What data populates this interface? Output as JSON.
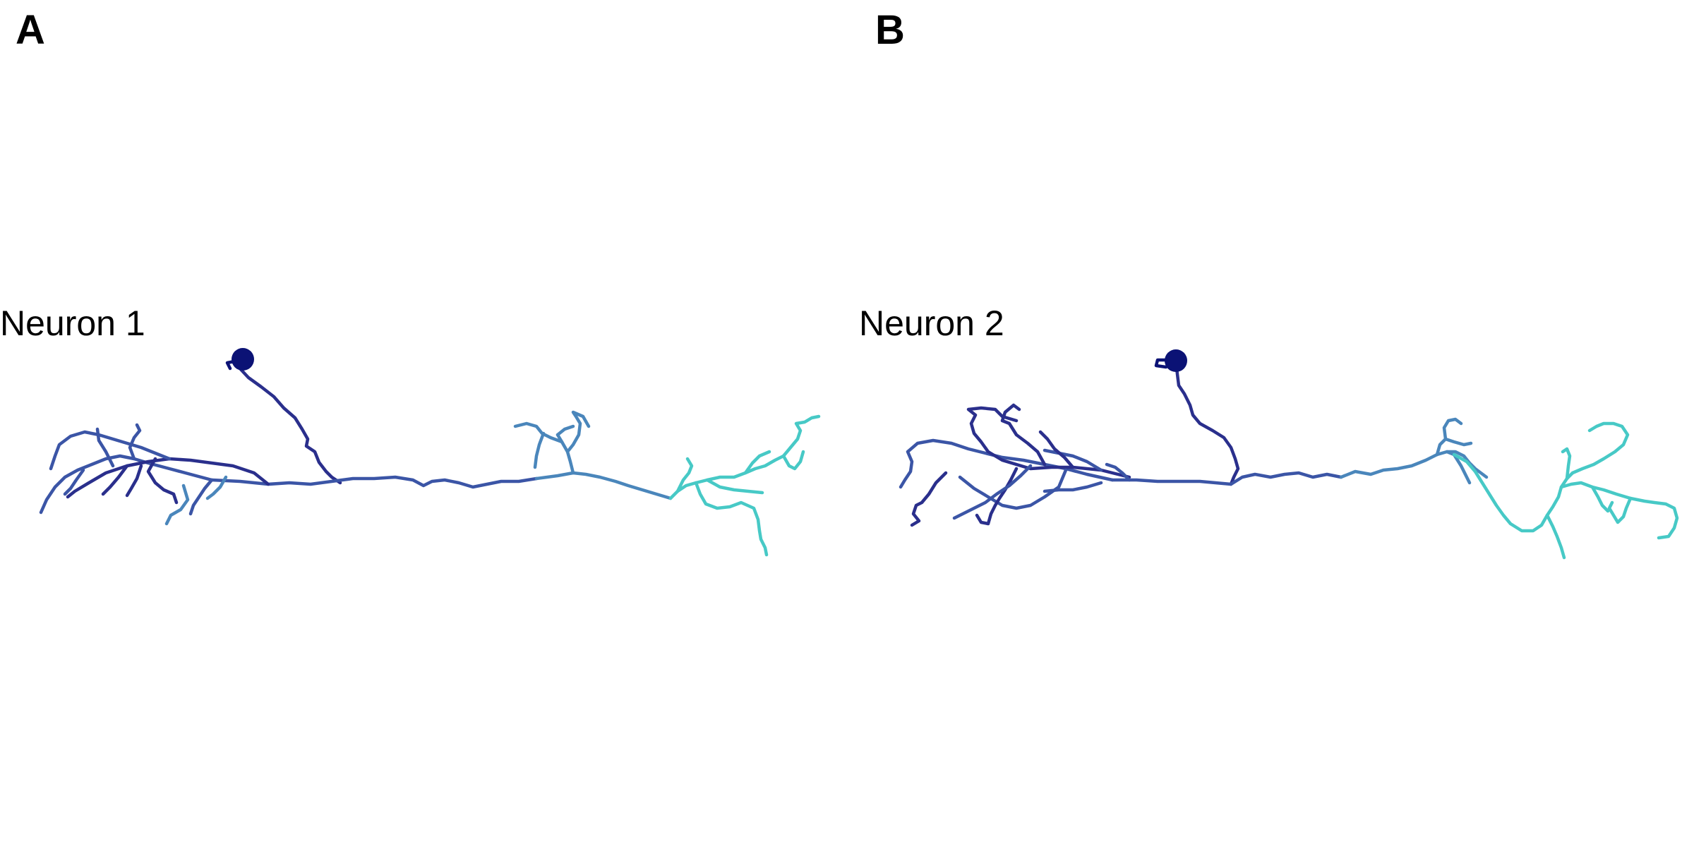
{
  "panels": [
    {
      "letter": "A",
      "neuron_label": "Neuron 1",
      "colors": {
        "soma": "#0b1275",
        "primary": "#2a2f8c",
        "proximal": "#3b55a6",
        "mid": "#4a86bb",
        "distal": "#47c9c6"
      }
    },
    {
      "letter": "B",
      "neuron_label": "Neuron 2",
      "colors": {
        "soma": "#0b1275",
        "primary": "#2a2f8c",
        "proximal": "#3b55a6",
        "mid": "#4a86bb",
        "distal": "#47c9c6"
      }
    }
  ]
}
